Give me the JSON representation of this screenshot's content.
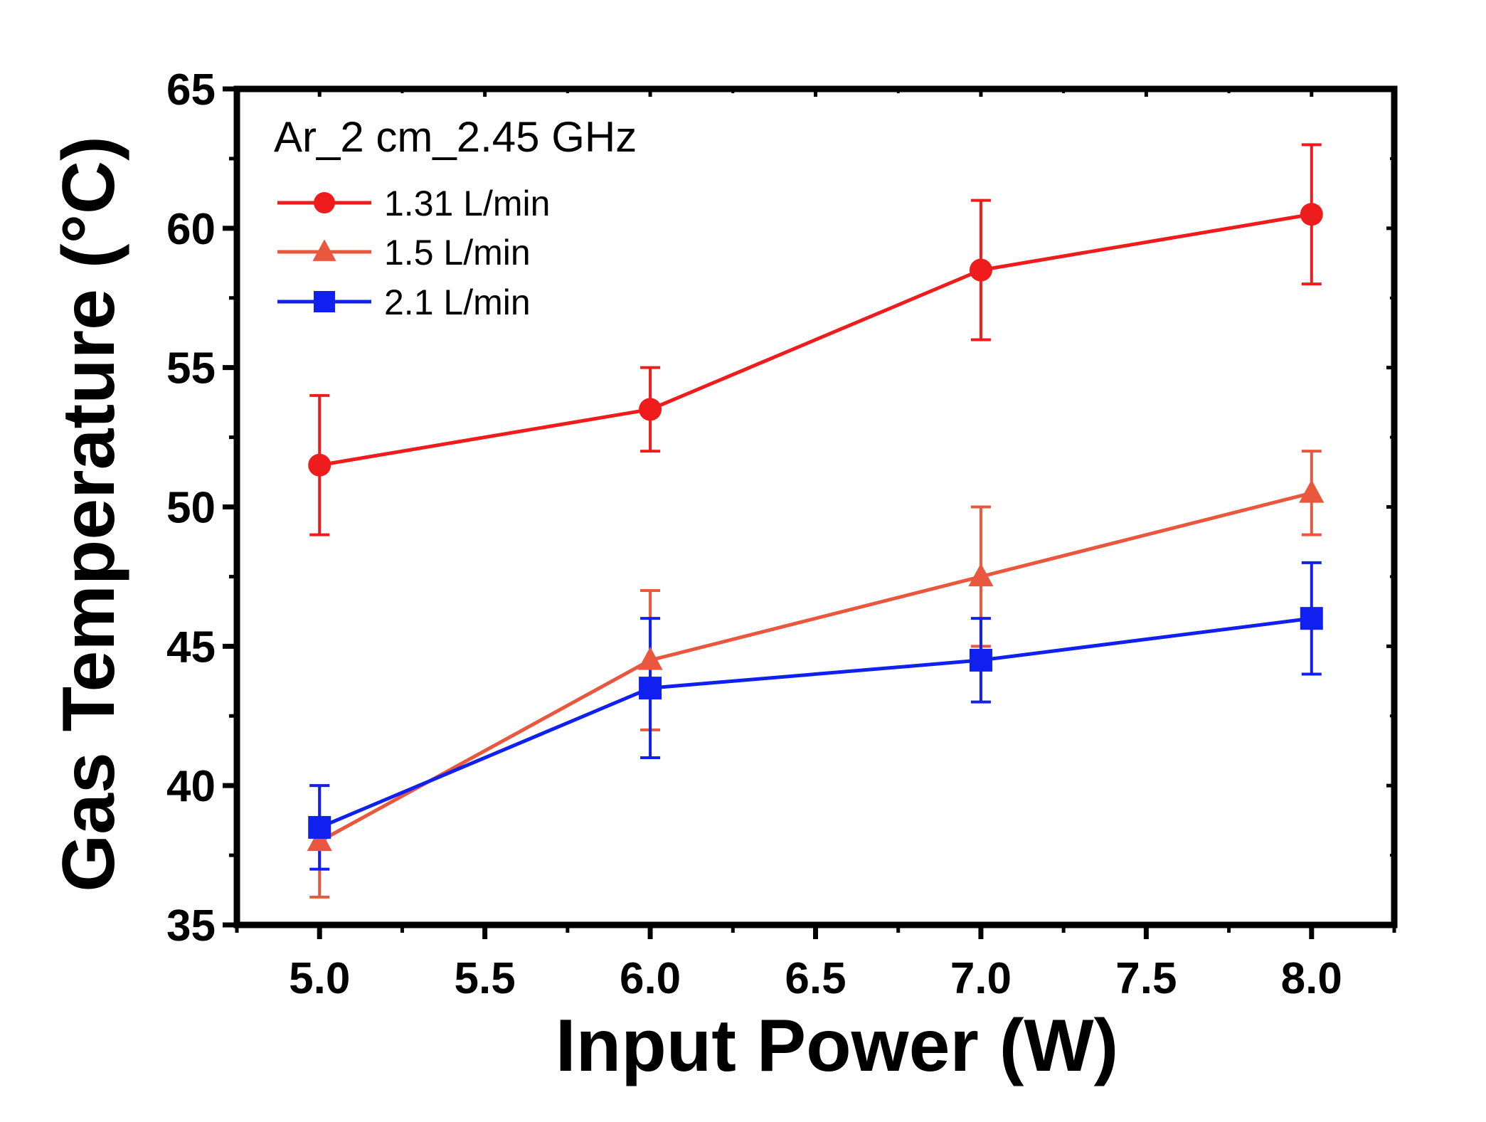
{
  "chart_data": {
    "type": "line",
    "title": "",
    "annotation": "Ar_2 cm_2.45 GHz",
    "xlabel": "Input Power (W)",
    "ylabel": "Gas Temperature (°C)",
    "xlim": [
      4.75,
      8.25
    ],
    "ylim": [
      35,
      65
    ],
    "xticks": [
      5.0,
      5.5,
      6.0,
      6.5,
      7.0,
      7.5,
      8.0
    ],
    "xtick_labels": [
      "5.0",
      "5.5",
      "6.0",
      "6.5",
      "7.0",
      "7.5",
      "8.0"
    ],
    "yticks": [
      35,
      40,
      45,
      50,
      55,
      60,
      65
    ],
    "ytick_labels": [
      "35",
      "40",
      "45",
      "50",
      "55",
      "60",
      "65"
    ],
    "grid": false,
    "legend_position": "top-left",
    "series": [
      {
        "name": "1.31 L/min",
        "color": "#ee1c1c",
        "marker": "circle",
        "x": [
          5.0,
          6.0,
          7.0,
          8.0
        ],
        "values": [
          51.5,
          53.5,
          58.5,
          60.5
        ],
        "error_low": [
          49.0,
          52.0,
          56.0,
          58.0
        ],
        "error_high": [
          54.0,
          55.0,
          61.0,
          63.0
        ]
      },
      {
        "name": "1.5 L/min",
        "color": "#e8573e",
        "marker": "triangle",
        "x": [
          5.0,
          6.0,
          7.0,
          8.0
        ],
        "values": [
          38.0,
          44.5,
          47.5,
          50.5
        ],
        "error_low": [
          36.0,
          42.0,
          45.0,
          49.0
        ],
        "error_high": [
          40.0,
          47.0,
          50.0,
          52.0
        ]
      },
      {
        "name": "2.1 L/min",
        "color": "#1020ee",
        "marker": "square",
        "x": [
          5.0,
          6.0,
          7.0,
          8.0
        ],
        "values": [
          38.5,
          43.5,
          44.5,
          46.0
        ],
        "error_low": [
          37.0,
          41.0,
          43.0,
          44.0
        ],
        "error_high": [
          40.0,
          46.0,
          46.0,
          48.0
        ]
      }
    ]
  }
}
